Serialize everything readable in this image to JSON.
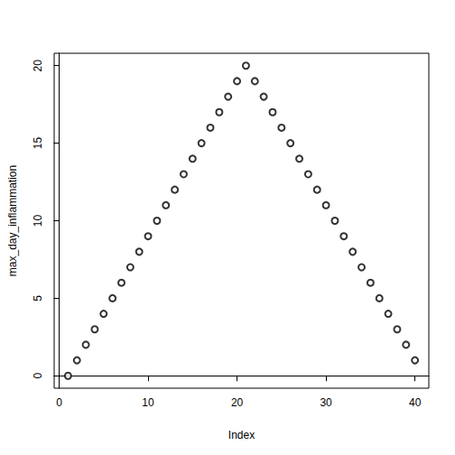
{
  "chart_data": {
    "type": "scatter",
    "x_label": "Index",
    "y_label": "max_day_inflammation",
    "x": [
      1,
      2,
      3,
      4,
      5,
      6,
      7,
      8,
      9,
      10,
      11,
      12,
      13,
      14,
      15,
      16,
      17,
      18,
      19,
      20,
      21,
      22,
      23,
      24,
      25,
      26,
      27,
      28,
      29,
      30,
      31,
      32,
      33,
      34,
      35,
      36,
      37,
      38,
      39,
      40
    ],
    "values": [
      0,
      1,
      2,
      3,
      4,
      5,
      6,
      7,
      8,
      9,
      10,
      11,
      12,
      13,
      14,
      15,
      16,
      17,
      18,
      19,
      20,
      19,
      18,
      17,
      16,
      15,
      14,
      13,
      12,
      11,
      10,
      9,
      8,
      7,
      6,
      5,
      4,
      3,
      2,
      1
    ],
    "xlim": [
      -0.56,
      41.56
    ],
    "ylim": [
      -0.8,
      20.8
    ],
    "xticks": [
      0,
      10,
      20,
      30,
      40
    ],
    "yticks": [
      0,
      5,
      10,
      15,
      20
    ],
    "color": "#000000",
    "marker": "open_circle",
    "grid": false
  }
}
